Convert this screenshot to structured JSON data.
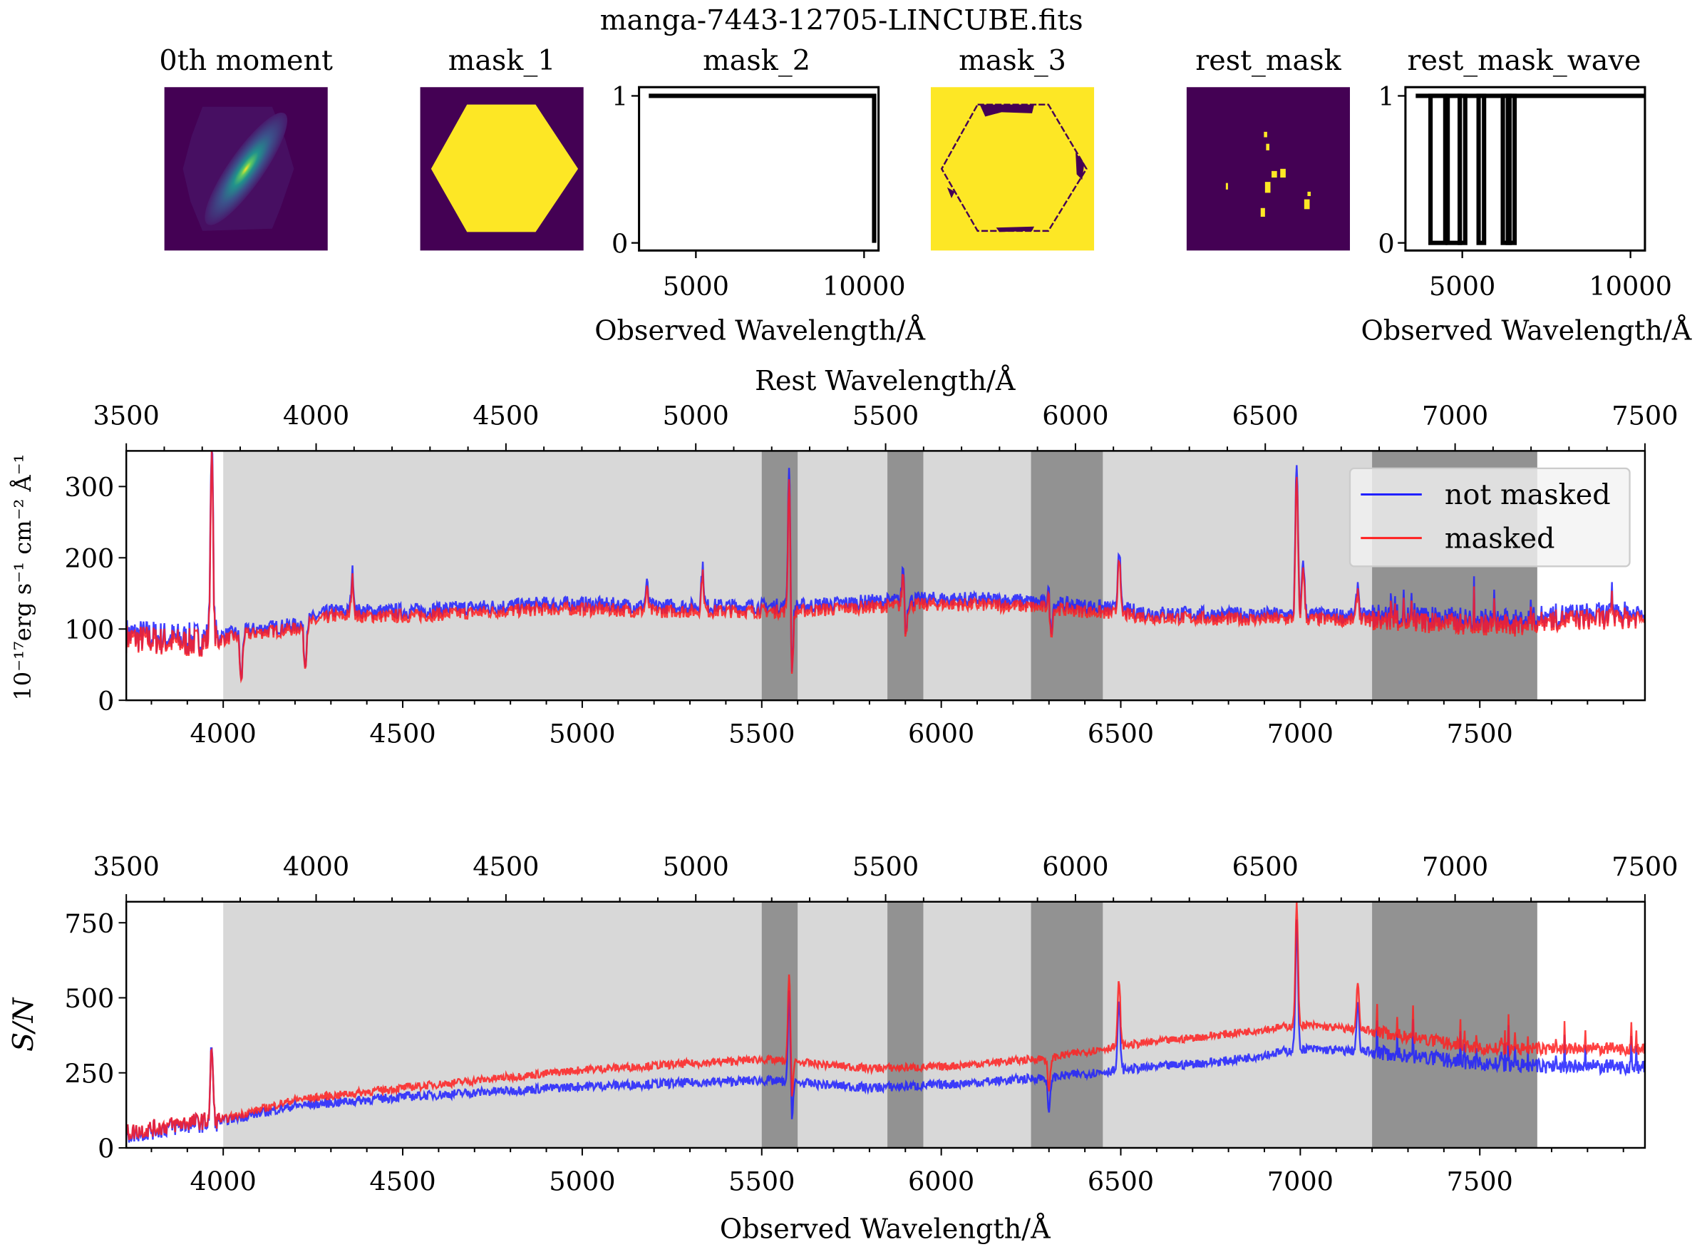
{
  "title": "manga-7443-12705-LINCUBE.fits",
  "panels": {
    "moment0": {
      "title": "0th moment"
    },
    "mask_1": {
      "title": "mask_1"
    },
    "mask_2": {
      "title": "mask_2",
      "xlabel": "Observed Wavelength/Å",
      "xticks": [
        5000,
        10000
      ],
      "yticks": [
        0,
        1
      ],
      "xlim": [
        3310,
        10430
      ],
      "step": [
        [
          3600,
          1
        ],
        [
          10300,
          1
        ],
        [
          10300,
          0
        ]
      ]
    },
    "mask_3": {
      "title": "mask_3"
    },
    "rest_mask": {
      "title": "rest_mask"
    },
    "rest_mask_wave": {
      "title": "rest_mask_wave",
      "xlabel": "Observed Wavelength/Å",
      "xticks": [
        5000,
        10000
      ],
      "yticks": [
        0,
        1
      ],
      "xlim": [
        3310,
        10430
      ],
      "line_range": [
        3615,
        10440
      ],
      "zero_ranges": [
        [
          4120,
          4430
        ],
        [
          4630,
          4860
        ],
        [
          4990,
          5020
        ],
        [
          5550,
          5580
        ],
        [
          6270,
          6340
        ],
        [
          6420,
          6490
        ]
      ]
    }
  },
  "colors": {
    "not_masked": "#2020ff",
    "masked": "#ff2020",
    "light_shade": "#d8d8d8",
    "dark_shade": "#929292",
    "viridis_low": "#440154",
    "viridis_high": "#fde725"
  },
  "chart_data": [
    {
      "type": "line",
      "xlabel_top": "Rest Wavelength/Å",
      "ylabel": "10⁻¹⁷erg s⁻¹ cm⁻² Å⁻¹",
      "xlim": [
        3730,
        7960
      ],
      "xlim_top": [
        3500,
        7500
      ],
      "ylim": [
        0,
        350
      ],
      "xticks": [
        4000,
        4500,
        5000,
        5500,
        6000,
        6500,
        7000,
        7500
      ],
      "xticks_top": [
        3500,
        4000,
        4500,
        5000,
        5500,
        6000,
        6500,
        7000,
        7500
      ],
      "yticks": [
        0,
        100,
        200,
        300
      ],
      "legend": {
        "placement": "upper right",
        "entries": [
          "not masked",
          "masked"
        ]
      },
      "light_region": [
        4000,
        7660
      ],
      "dark_regions": [
        [
          5500,
          5600
        ],
        [
          5850,
          5950
        ],
        [
          6250,
          6450
        ],
        [
          7200,
          7660
        ]
      ],
      "x": [
        3730,
        3900,
        3990,
        4100,
        4200,
        4300,
        4500,
        4700,
        4900,
        5000,
        5200,
        5400,
        5600,
        5800,
        6000,
        6200,
        6400,
        6600,
        6800,
        7000,
        7200,
        7400,
        7600,
        7700,
        7960
      ],
      "series": [
        {
          "name": "not masked",
          "values": [
            92,
            85,
            90,
            100,
            105,
            125,
            125,
            130,
            135,
            135,
            132,
            132,
            132,
            138,
            142,
            140,
            132,
            122,
            120,
            120,
            118,
            114,
            110,
            118,
            122
          ]
        },
        {
          "name": "masked",
          "values": [
            87,
            80,
            85,
            95,
            100,
            118,
            118,
            123,
            128,
            128,
            125,
            125,
            125,
            131,
            135,
            133,
            125,
            116,
            114,
            114,
            112,
            108,
            104,
            112,
            116
          ]
        }
      ],
      "features": [
        [
          3968,
          295
        ],
        [
          4050,
          -70
        ],
        [
          4228,
          -60
        ],
        [
          4360,
          55
        ],
        [
          5180,
          30
        ],
        [
          5335,
          55
        ],
        [
          5577,
          230
        ],
        [
          5583,
          -130
        ],
        [
          5895,
          65
        ],
        [
          5900,
          -60
        ],
        [
          6300,
          30
        ],
        [
          6305,
          -50
        ],
        [
          6495,
          90
        ],
        [
          6990,
          210
        ],
        [
          7008,
          80
        ],
        [
          7160,
          45
        ]
      ]
    },
    {
      "type": "line",
      "xlabel": "Observed Wavelength/Å",
      "ylabel": "S/N",
      "xlim": [
        3730,
        7960
      ],
      "xlim_top": [
        3500,
        7500
      ],
      "ylim": [
        0,
        820
      ],
      "xticks": [
        4000,
        4500,
        5000,
        5500,
        6000,
        6500,
        7000,
        7500
      ],
      "xticks_top": [
        3500,
        4000,
        4500,
        5000,
        5500,
        6000,
        6500,
        7000,
        7500
      ],
      "yticks": [
        0,
        250,
        500,
        750
      ],
      "light_region": [
        4000,
        7660
      ],
      "dark_regions": [
        [
          5500,
          5600
        ],
        [
          5850,
          5950
        ],
        [
          6250,
          6450
        ],
        [
          7200,
          7660
        ]
      ],
      "x": [
        3730,
        3900,
        4000,
        4200,
        4500,
        5000,
        5500,
        5800,
        6000,
        6300,
        6500,
        6800,
        7000,
        7200,
        7500,
        7700,
        7960
      ],
      "series": [
        {
          "name": "not masked",
          "values": [
            45,
            80,
            90,
            140,
            170,
            205,
            225,
            200,
            210,
            235,
            260,
            290,
            330,
            320,
            280,
            270,
            270
          ]
        },
        {
          "name": "masked",
          "values": [
            50,
            85,
            95,
            160,
            200,
            260,
            295,
            265,
            270,
            300,
            340,
            380,
            410,
            390,
            330,
            330,
            330
          ]
        }
      ],
      "features": [
        [
          3968,
          260
        ],
        [
          5577,
          340
        ],
        [
          5583,
          -160
        ],
        [
          6300,
          -120
        ],
        [
          6495,
          230
        ],
        [
          6990,
          420
        ],
        [
          7160,
          160
        ]
      ]
    }
  ]
}
